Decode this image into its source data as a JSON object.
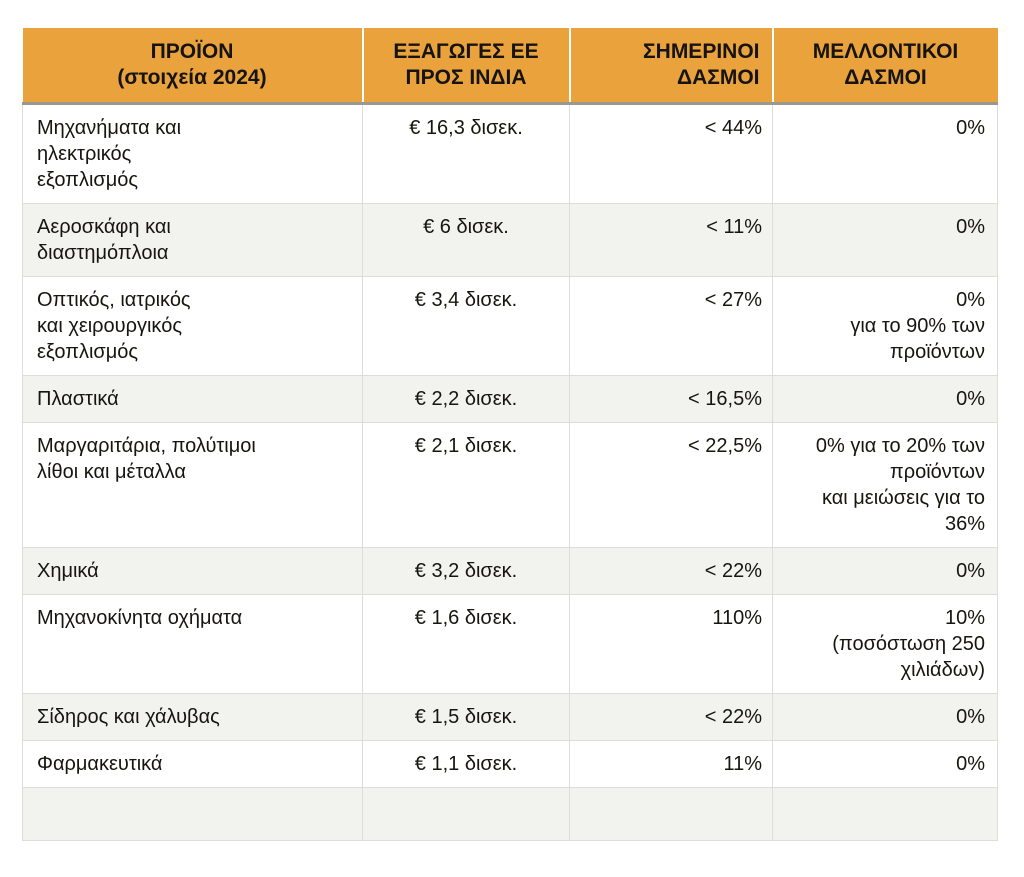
{
  "chart_data": {
    "type": "table",
    "columns": [
      {
        "label": "ΠΡΟΪΟΝ\n(στοιχεία 2024)"
      },
      {
        "label": "ΕΞΑΓΩΓΕΣ ΕΕ\nΠΡΟΣ ΙΝΔΙΑ"
      },
      {
        "label": "ΣΗΜΕΡΙΝΟΙ\nΔΑΣΜΟΙ"
      },
      {
        "label": "ΜΕΛΛΟΝΤΙΚΟΙ\nΔΑΣΜΟΙ"
      }
    ],
    "rows": [
      {
        "product": "Μηχανήματα και\nηλεκτρικός\nεξοπλισμός",
        "exports_eu_to_india": "€ 16,3 δισεκ.",
        "current_tariffs": "< 44%",
        "future_tariffs": "0%"
      },
      {
        "product": "Αεροσκάφη και\nδιαστημόπλοια",
        "exports_eu_to_india": "€ 6 δισεκ.",
        "current_tariffs": "< 11%",
        "future_tariffs": "0%"
      },
      {
        "product": "Οπτικός, ιατρικός\nκαι χειρουργικός\nεξοπλισμός",
        "exports_eu_to_india": "€ 3,4 δισεκ.",
        "current_tariffs": "< 27%",
        "future_tariffs": "0%\nγια το 90% των\nπροϊόντων"
      },
      {
        "product": "Πλαστικά",
        "exports_eu_to_india": "€ 2,2 δισεκ.",
        "current_tariffs": "< 16,5%",
        "future_tariffs": "0%"
      },
      {
        "product": "Μαργαριτάρια, πολύτιμοι\nλίθοι και μέταλλα",
        "exports_eu_to_india": "€ 2,1 δισεκ.",
        "current_tariffs": "< 22,5%",
        "future_tariffs": "0% για το 20% των\nπροϊόντων\nκαι μειώσεις για το\n36%"
      },
      {
        "product": "Χημικά",
        "exports_eu_to_india": "€ 3,2 δισεκ.",
        "current_tariffs": "< 22%",
        "future_tariffs": "0%"
      },
      {
        "product": "Μηχανοκίνητα οχήματα",
        "exports_eu_to_india": "€ 1,6 δισεκ.",
        "current_tariffs": "110%",
        "future_tariffs": "10%\n(ποσόστωση 250\nχιλιάδων)"
      },
      {
        "product": "Σίδηρος και χάλυβας",
        "exports_eu_to_india": "€ 1,5 δισεκ.",
        "current_tariffs": "< 22%",
        "future_tariffs": "0%"
      },
      {
        "product": "Φαρμακευτικά",
        "exports_eu_to_india": "€ 1,1 δισεκ.",
        "current_tariffs": "11%",
        "future_tariffs": "0%"
      },
      {
        "product": "",
        "exports_eu_to_india": "",
        "current_tariffs": "",
        "future_tariffs": ""
      }
    ]
  },
  "theme": {
    "header-bg": "#EAA23C",
    "header-text": "#151412",
    "body-text": "#17150F",
    "stripe-bg": "#F2F2EF",
    "grid-line": "#DCDCD8",
    "header-underline": "#9C978F",
    "page-bg": "#FFFFFF"
  }
}
